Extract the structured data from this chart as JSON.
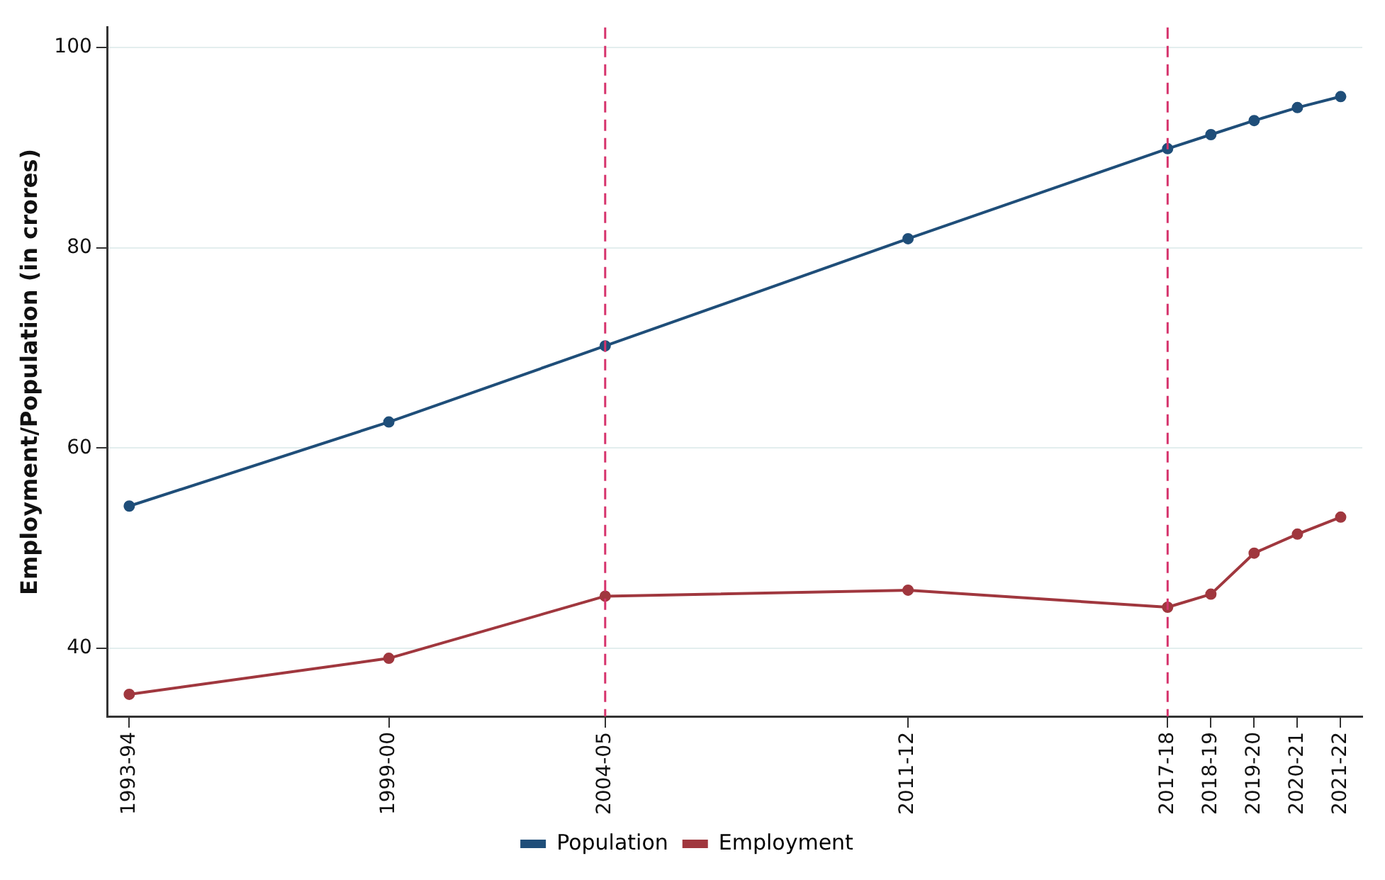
{
  "chart_data": {
    "type": "line",
    "ylabel": "Employment/Population (in crores)",
    "categories": [
      "1993-94",
      null,
      null,
      null,
      null,
      null,
      "1999-00",
      null,
      null,
      null,
      null,
      "2004-05",
      null,
      null,
      null,
      null,
      null,
      null,
      "2011-12",
      null,
      null,
      null,
      null,
      null,
      "2017-18",
      "2018-19",
      "2019-20",
      "2020-21",
      "2021-22"
    ],
    "ylim": [
      33.2,
      102
    ],
    "yticks": [
      40,
      60,
      80,
      100
    ],
    "series": [
      {
        "name": "Population",
        "color": "#1f4e79",
        "values": [
          54.2,
          null,
          null,
          null,
          null,
          null,
          62.6,
          null,
          null,
          null,
          null,
          70.2,
          null,
          null,
          null,
          null,
          null,
          null,
          80.9,
          null,
          null,
          null,
          null,
          null,
          89.9,
          91.3,
          92.7,
          94.0,
          95.1
        ]
      },
      {
        "name": "Employment",
        "color": "#a0373e",
        "values": [
          35.4,
          null,
          null,
          null,
          null,
          null,
          39.0,
          null,
          null,
          null,
          null,
          45.2,
          null,
          null,
          null,
          null,
          null,
          null,
          45.8,
          null,
          null,
          null,
          null,
          null,
          44.1,
          45.4,
          49.5,
          51.4,
          53.1
        ]
      }
    ],
    "ref_lines": [
      {
        "axis": "x",
        "value": "2004-05",
        "color": "#d6336c",
        "line_style": "dashed"
      },
      {
        "axis": "x",
        "value": "2017-18",
        "color": "#d6336c",
        "line_style": "dashed"
      }
    ],
    "grid": "y",
    "legend": "bottom",
    "marker": "circle",
    "line_style": "solid"
  }
}
